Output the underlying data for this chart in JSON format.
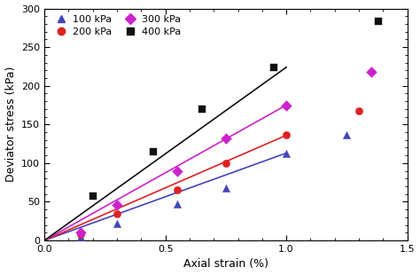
{
  "title": "",
  "xlabel": "Axial strain (%)",
  "ylabel": "Deviator stress (kPa)",
  "xlim": [
    0,
    1.5
  ],
  "ylim": [
    0,
    300
  ],
  "xticks": [
    0,
    0.5,
    1.0,
    1.5
  ],
  "yticks": [
    0,
    50,
    100,
    150,
    200,
    250,
    300
  ],
  "series": [
    {
      "label": "100 kPa",
      "color": "#4444bb",
      "marker": "^",
      "scatter_x": [
        0.15,
        0.3,
        0.55,
        0.75,
        1.0,
        1.25
      ],
      "scatter_y": [
        5,
        22,
        47,
        68,
        113,
        137
      ],
      "line_x": [
        0,
        1.0
      ],
      "line_y": [
        0,
        113
      ]
    },
    {
      "label": "200 kPa",
      "color": "#dd2222",
      "marker": "o",
      "scatter_x": [
        0.15,
        0.3,
        0.55,
        0.75,
        1.0,
        1.3
      ],
      "scatter_y": [
        8,
        34,
        66,
        100,
        136,
        168
      ],
      "line_x": [
        0,
        1.0
      ],
      "line_y": [
        0,
        136
      ]
    },
    {
      "label": "300 kPa",
      "color": "#cc22cc",
      "marker": "D",
      "scatter_x": [
        0.15,
        0.3,
        0.55,
        0.75,
        1.0,
        1.35
      ],
      "scatter_y": [
        10,
        46,
        90,
        132,
        175,
        218
      ],
      "line_x": [
        0,
        1.0
      ],
      "line_y": [
        0,
        175
      ]
    },
    {
      "label": "400 kPa",
      "color": "#111111",
      "marker": "s",
      "scatter_x": [
        0.2,
        0.45,
        0.65,
        0.95,
        1.38
      ],
      "scatter_y": [
        57,
        115,
        170,
        224,
        284
      ],
      "line_x": [
        0,
        1.0
      ],
      "line_y": [
        0,
        224
      ]
    }
  ],
  "legend_loc": "upper left",
  "background_color": "#ffffff",
  "marker_size": 6,
  "line_width": 1.2,
  "legend_fontsize": 8,
  "axis_fontsize": 9,
  "tick_fontsize": 8
}
